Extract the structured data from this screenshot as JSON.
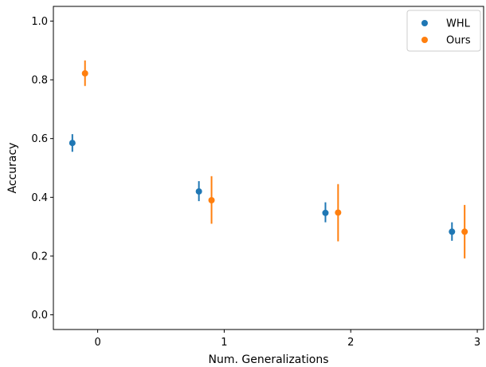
{
  "chart_data": {
    "type": "scatter",
    "xlabel": "Num. Generalizations",
    "ylabel": "Accuracy",
    "xlim": [
      -0.35,
      3.05
    ],
    "ylim": [
      -0.05,
      1.05
    ],
    "x_ticks": [
      0,
      1,
      2,
      3
    ],
    "y_ticks": [
      0.0,
      0.2,
      0.4,
      0.6,
      0.8,
      1.0
    ],
    "x_tick_labels": [
      "0",
      "1",
      "2",
      "3"
    ],
    "y_tick_labels": [
      "0.0",
      "0.2",
      "0.4",
      "0.6",
      "0.8",
      "1.0"
    ],
    "grid": false,
    "legend_position": "top-right",
    "series": [
      {
        "name": "WHL",
        "color": "#1f77b4",
        "points": [
          {
            "x": -0.2,
            "y": 0.585,
            "err_low": 0.555,
            "err_high": 0.615
          },
          {
            "x": 0.8,
            "y": 0.42,
            "err_low": 0.387,
            "err_high": 0.455
          },
          {
            "x": 1.8,
            "y": 0.347,
            "err_low": 0.315,
            "err_high": 0.383
          },
          {
            "x": 2.8,
            "y": 0.283,
            "err_low": 0.252,
            "err_high": 0.315
          }
        ]
      },
      {
        "name": "Ours",
        "color": "#ff7f0e",
        "points": [
          {
            "x": -0.1,
            "y": 0.822,
            "err_low": 0.779,
            "err_high": 0.866
          },
          {
            "x": 0.9,
            "y": 0.39,
            "err_low": 0.31,
            "err_high": 0.472
          },
          {
            "x": 1.9,
            "y": 0.348,
            "err_low": 0.25,
            "err_high": 0.445
          },
          {
            "x": 2.9,
            "y": 0.283,
            "err_low": 0.192,
            "err_high": 0.374
          }
        ]
      }
    ]
  }
}
